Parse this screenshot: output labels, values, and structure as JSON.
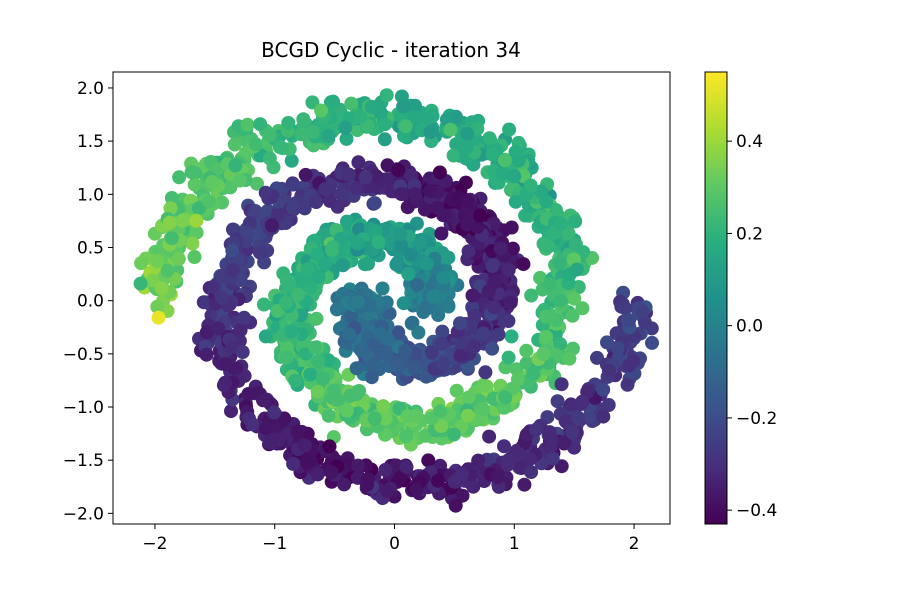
{
  "chart_data": {
    "type": "scatter",
    "title": "BCGD Cyclic - iteration 34",
    "xlabel": "",
    "ylabel": "",
    "xlim": [
      -2.35,
      2.3
    ],
    "ylim": [
      -2.1,
      2.15
    ],
    "xticks": [
      -2,
      -1,
      0,
      1,
      2
    ],
    "xtick_labels": [
      "−2",
      "−1",
      "0",
      "1",
      "2"
    ],
    "yticks": [
      -2.0,
      -1.5,
      -1.0,
      -0.5,
      0.0,
      0.5,
      1.0,
      1.5,
      2.0
    ],
    "ytick_labels": [
      "−2.0",
      "−1.5",
      "−1.0",
      "−0.5",
      "0.0",
      "0.5",
      "1.0",
      "1.5",
      "2.0"
    ],
    "grid": false,
    "colormap": "viridis",
    "colorbar": {
      "range": [
        -0.43,
        0.55
      ],
      "ticks": [
        -0.4,
        -0.2,
        0.0,
        0.2,
        0.4
      ],
      "tick_labels": [
        "−0.4",
        "−0.2",
        "0.0",
        "0.2",
        "0.4"
      ]
    },
    "series": [
      {
        "description": "two interleaved spiral arms, each point colored by predicted value",
        "arm_a": {
          "r_start": 0.25,
          "r_end": 2.0,
          "theta_start_deg": 0,
          "theta_end_deg": 540,
          "values_along_arm": [
            -0.05,
            0.05,
            0.12,
            0.18,
            0.22,
            0.28,
            0.3,
            0.26,
            0.2,
            0.15,
            0.25,
            0.35
          ]
        },
        "arm_b": {
          "r_start": 0.25,
          "r_end": 2.0,
          "theta_start_deg": 180,
          "theta_end_deg": 720,
          "values_along_arm": [
            -0.05,
            -0.1,
            -0.15,
            -0.28,
            -0.35,
            -0.38,
            -0.3,
            -0.25,
            -0.35,
            -0.38,
            -0.32,
            -0.22
          ]
        },
        "highlight_points": [
          {
            "x": -1.97,
            "y": -0.16,
            "value": 0.52
          },
          {
            "x": -2.12,
            "y": 0.16,
            "value": 0.22
          }
        ]
      }
    ]
  }
}
